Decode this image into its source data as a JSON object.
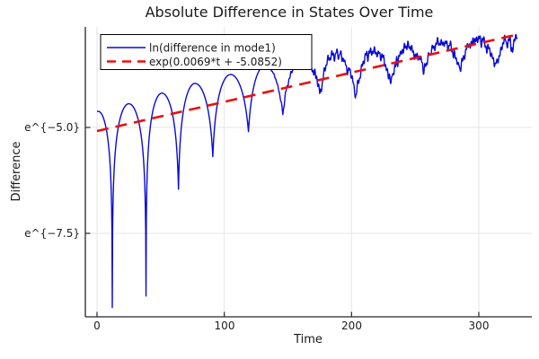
{
  "page": {
    "background": "#ffffff"
  },
  "chart_data": {
    "type": "line",
    "title": "Absolute Difference in States Over Time",
    "xlabel": "Time",
    "ylabel": "Difference",
    "x_ticks": [
      0,
      100,
      200,
      300
    ],
    "y_ticks": [
      {
        "label": "e^{−5.0}",
        "value": -5.0
      },
      {
        "label": "e^{−7.5}",
        "value": -7.5
      }
    ],
    "xlim": [
      -9.2,
      341.6
    ],
    "ylim_ln": [
      -9.44,
      -2.62
    ],
    "grid": true,
    "grid_color": "#e6e6e6",
    "axis_color": "#262626",
    "legend_position": "top-left",
    "series": [
      {
        "name": "ln(difference in mode1)",
        "color": "#0a0ad6",
        "style": "solid",
        "width": 1.4,
        "model": "log-abs-oscillation",
        "shape_D": 0.9,
        "t_range": [
          0,
          330
        ],
        "t_step": 0.25,
        "knots": [
          [
            -12.5,
            -9.0,
            "T"
          ],
          [
            1,
            -4.62,
            "P"
          ],
          [
            12,
            -9.25,
            "T"
          ],
          [
            25,
            -4.44,
            "P"
          ],
          [
            38.5,
            -8.98,
            "T"
          ],
          [
            51,
            -4.19,
            "P"
          ],
          [
            64,
            -6.46,
            "T"
          ],
          [
            77,
            -3.96,
            "P"
          ],
          [
            91,
            -5.69,
            "T"
          ],
          [
            105,
            -3.75,
            "P"
          ],
          [
            119,
            -5.1,
            "T"
          ],
          [
            132,
            -3.54,
            "P"
          ],
          [
            146,
            -4.69,
            "T"
          ],
          [
            161,
            -3.4,
            "P"
          ],
          [
            175,
            -4.19,
            "T"
          ],
          [
            188,
            -3.29,
            "P"
          ],
          [
            203,
            -4.27,
            "T"
          ],
          [
            218,
            -3.19,
            "P"
          ],
          [
            231,
            -3.96,
            "T"
          ],
          [
            244,
            -3.12,
            "P"
          ],
          [
            257,
            -3.62,
            "T"
          ],
          [
            271,
            -3.02,
            "P"
          ],
          [
            285,
            -3.66,
            "T"
          ],
          [
            299,
            -2.94,
            "P"
          ],
          [
            313,
            -3.56,
            "T"
          ],
          [
            324,
            -2.92,
            "P"
          ],
          [
            326.5,
            -3.3,
            "T"
          ],
          [
            330,
            -2.85,
            "P"
          ]
        ],
        "noise": {
          "seed": 42,
          "amp": 0.11,
          "ramp_start": 132,
          "ramp_len": 35
        }
      },
      {
        "name": "exp(0.0069*t + -5.0852)",
        "color": "#e8100c",
        "style": "dashed",
        "width": 2.6,
        "slope": 0.0069,
        "intercept": -5.0852,
        "t_range": [
          0,
          332
        ]
      }
    ]
  }
}
